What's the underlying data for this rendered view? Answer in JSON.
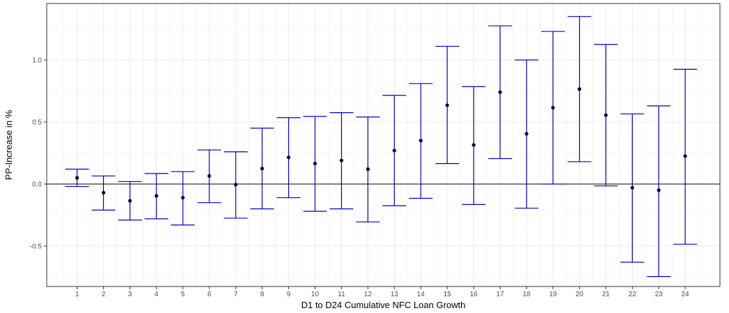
{
  "chart_data": {
    "type": "scatter",
    "title": "",
    "xlabel": "D1 to D24 Cumulative NFC Loan Growth",
    "ylabel": "PP-Increase in %",
    "x": [
      1,
      2,
      3,
      4,
      5,
      6,
      7,
      8,
      9,
      10,
      11,
      12,
      13,
      14,
      15,
      16,
      17,
      18,
      19,
      20,
      21,
      22,
      23,
      24
    ],
    "series": [
      {
        "estimate": [
          0.05,
          -0.07,
          -0.135,
          -0.095,
          -0.11,
          0.065,
          -0.005,
          0.125,
          0.215,
          0.165,
          0.19,
          0.12,
          0.27,
          0.35,
          0.635,
          0.315,
          0.74,
          0.405,
          0.615,
          0.765,
          0.555,
          -0.03,
          -0.05,
          0.225
        ],
        "lower": [
          -0.02,
          -0.21,
          -0.29,
          -0.28,
          -0.33,
          -0.15,
          -0.275,
          -0.2,
          -0.11,
          -0.22,
          -0.2,
          -0.305,
          -0.175,
          -0.115,
          0.165,
          -0.165,
          0.205,
          -0.195,
          0.0,
          0.18,
          -0.015,
          -0.63,
          -0.745,
          -0.485
        ],
        "upper": [
          0.12,
          0.065,
          0.02,
          0.085,
          0.1,
          0.275,
          0.26,
          0.45,
          0.535,
          0.545,
          0.575,
          0.54,
          0.715,
          0.81,
          1.11,
          0.785,
          1.275,
          1.0,
          1.23,
          1.35,
          1.125,
          0.565,
          0.63,
          0.925
        ]
      }
    ],
    "ylim": [
      -0.8,
      1.45
    ],
    "yticks": [
      "-0.5",
      "0.0",
      "0.5",
      "1.0"
    ],
    "xticks": [
      "1",
      "2",
      "3",
      "4",
      "5",
      "6",
      "7",
      "8",
      "9",
      "10",
      "11",
      "12",
      "13",
      "14",
      "15",
      "16",
      "17",
      "18",
      "19",
      "20",
      "21",
      "22",
      "23",
      "24"
    ],
    "hline": 0,
    "grid": true,
    "colors": {
      "errorbar": "#0000CC",
      "point": "#000033",
      "grid": "#ebebeb",
      "panel_border": "#333333"
    }
  }
}
